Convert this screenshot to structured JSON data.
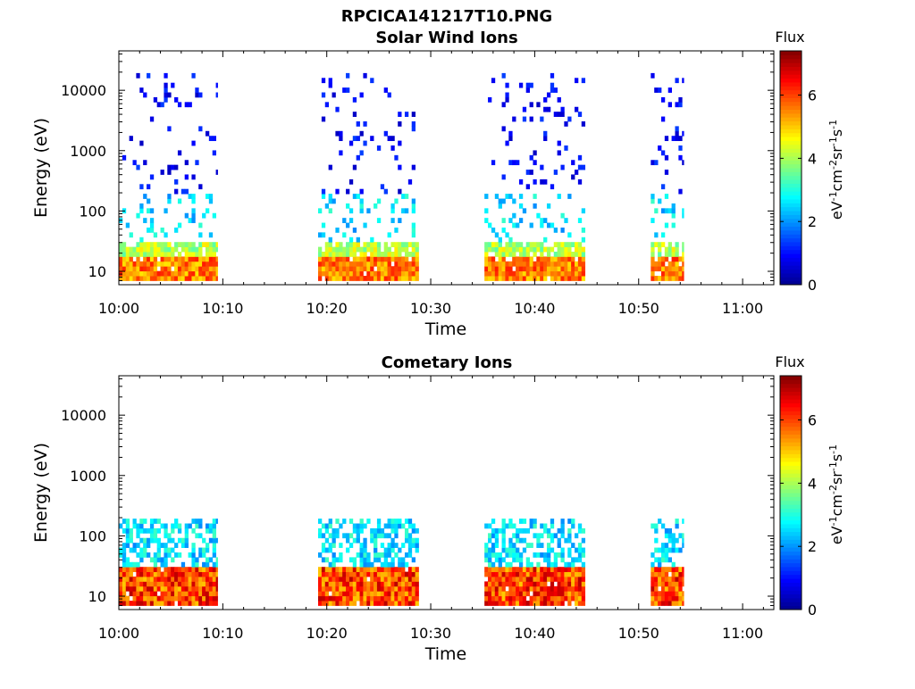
{
  "figure": {
    "title": "RPCICA141217T10.PNG"
  },
  "chart_data": [
    {
      "type": "heatmap",
      "title": "Solar Wind Ions",
      "xlabel": "Time",
      "ylabel": "Energy (eV)",
      "x_ticks": [
        "10:00",
        "10:10",
        "10:20",
        "10:30",
        "10:40",
        "10:50",
        "11:00"
      ],
      "xlim": [
        "10:00",
        "11:03"
      ],
      "y_scale": "log",
      "y_ticks": [
        10,
        100,
        1000,
        10000
      ],
      "y_tick_labels": [
        "10",
        "100",
        "1000",
        "10000"
      ],
      "ylim": [
        6,
        45000
      ],
      "colorbar": {
        "title": "Flux",
        "label": "eV-1cm-2sr-1s-1",
        "ticks": [
          "0",
          "2",
          "4",
          "6"
        ],
        "range": [
          0,
          7.4
        ]
      },
      "data_intervals": [
        {
          "start": "10:00",
          "end": "10:09:30"
        },
        {
          "start": "10:19:10",
          "end": "10:28:50"
        },
        {
          "start": "10:35:10",
          "end": "10:44:50"
        },
        {
          "start": "10:51:10",
          "end": "10:54:20"
        }
      ],
      "bands": [
        {
          "energy_range_eV": [
            7,
            17
          ],
          "flux_range": [
            4.8,
            6.3
          ],
          "density": 0.95
        },
        {
          "energy_range_eV": [
            17,
            28
          ],
          "flux_range": [
            3.4,
            4.8
          ],
          "density": 0.85
        },
        {
          "energy_range_eV": [
            28,
            200
          ],
          "flux_range": [
            1.9,
            3.2
          ],
          "density": 0.15
        },
        {
          "energy_range_eV": [
            200,
            20000
          ],
          "flux_range": [
            0.4,
            1.4
          ],
          "density": 0.08
        }
      ]
    },
    {
      "type": "heatmap",
      "title": "Cometary Ions",
      "xlabel": "Time",
      "ylabel": "Energy (eV)",
      "x_ticks": [
        "10:00",
        "10:10",
        "10:20",
        "10:30",
        "10:40",
        "10:50",
        "11:00"
      ],
      "xlim": [
        "10:00",
        "11:03"
      ],
      "y_scale": "log",
      "y_ticks": [
        10,
        100,
        1000,
        10000
      ],
      "y_tick_labels": [
        "10",
        "100",
        "1000",
        "10000"
      ],
      "ylim": [
        6,
        45000
      ],
      "colorbar": {
        "title": "Flux",
        "label": "eV-1cm-2sr-1s-1",
        "ticks": [
          "0",
          "2",
          "4",
          "6"
        ],
        "range": [
          0,
          7.4
        ]
      },
      "data_intervals": [
        {
          "start": "10:00",
          "end": "10:09:30"
        },
        {
          "start": "10:19:10",
          "end": "10:28:50"
        },
        {
          "start": "10:35:10",
          "end": "10:44:50"
        },
        {
          "start": "10:51:10",
          "end": "10:54:20"
        }
      ],
      "bands": [
        {
          "energy_range_eV": [
            7,
            28
          ],
          "flux_range": [
            5.0,
            7.0
          ],
          "density": 0.98
        },
        {
          "energy_range_eV": [
            28,
            200
          ],
          "flux_range": [
            1.9,
            3.3
          ],
          "density": 0.5
        }
      ]
    }
  ],
  "colormap": [
    "#00008f",
    "#0000ff",
    "#007fff",
    "#00ffff",
    "#7fff7f",
    "#ffff00",
    "#ff7f00",
    "#ff0000",
    "#7f0000"
  ]
}
